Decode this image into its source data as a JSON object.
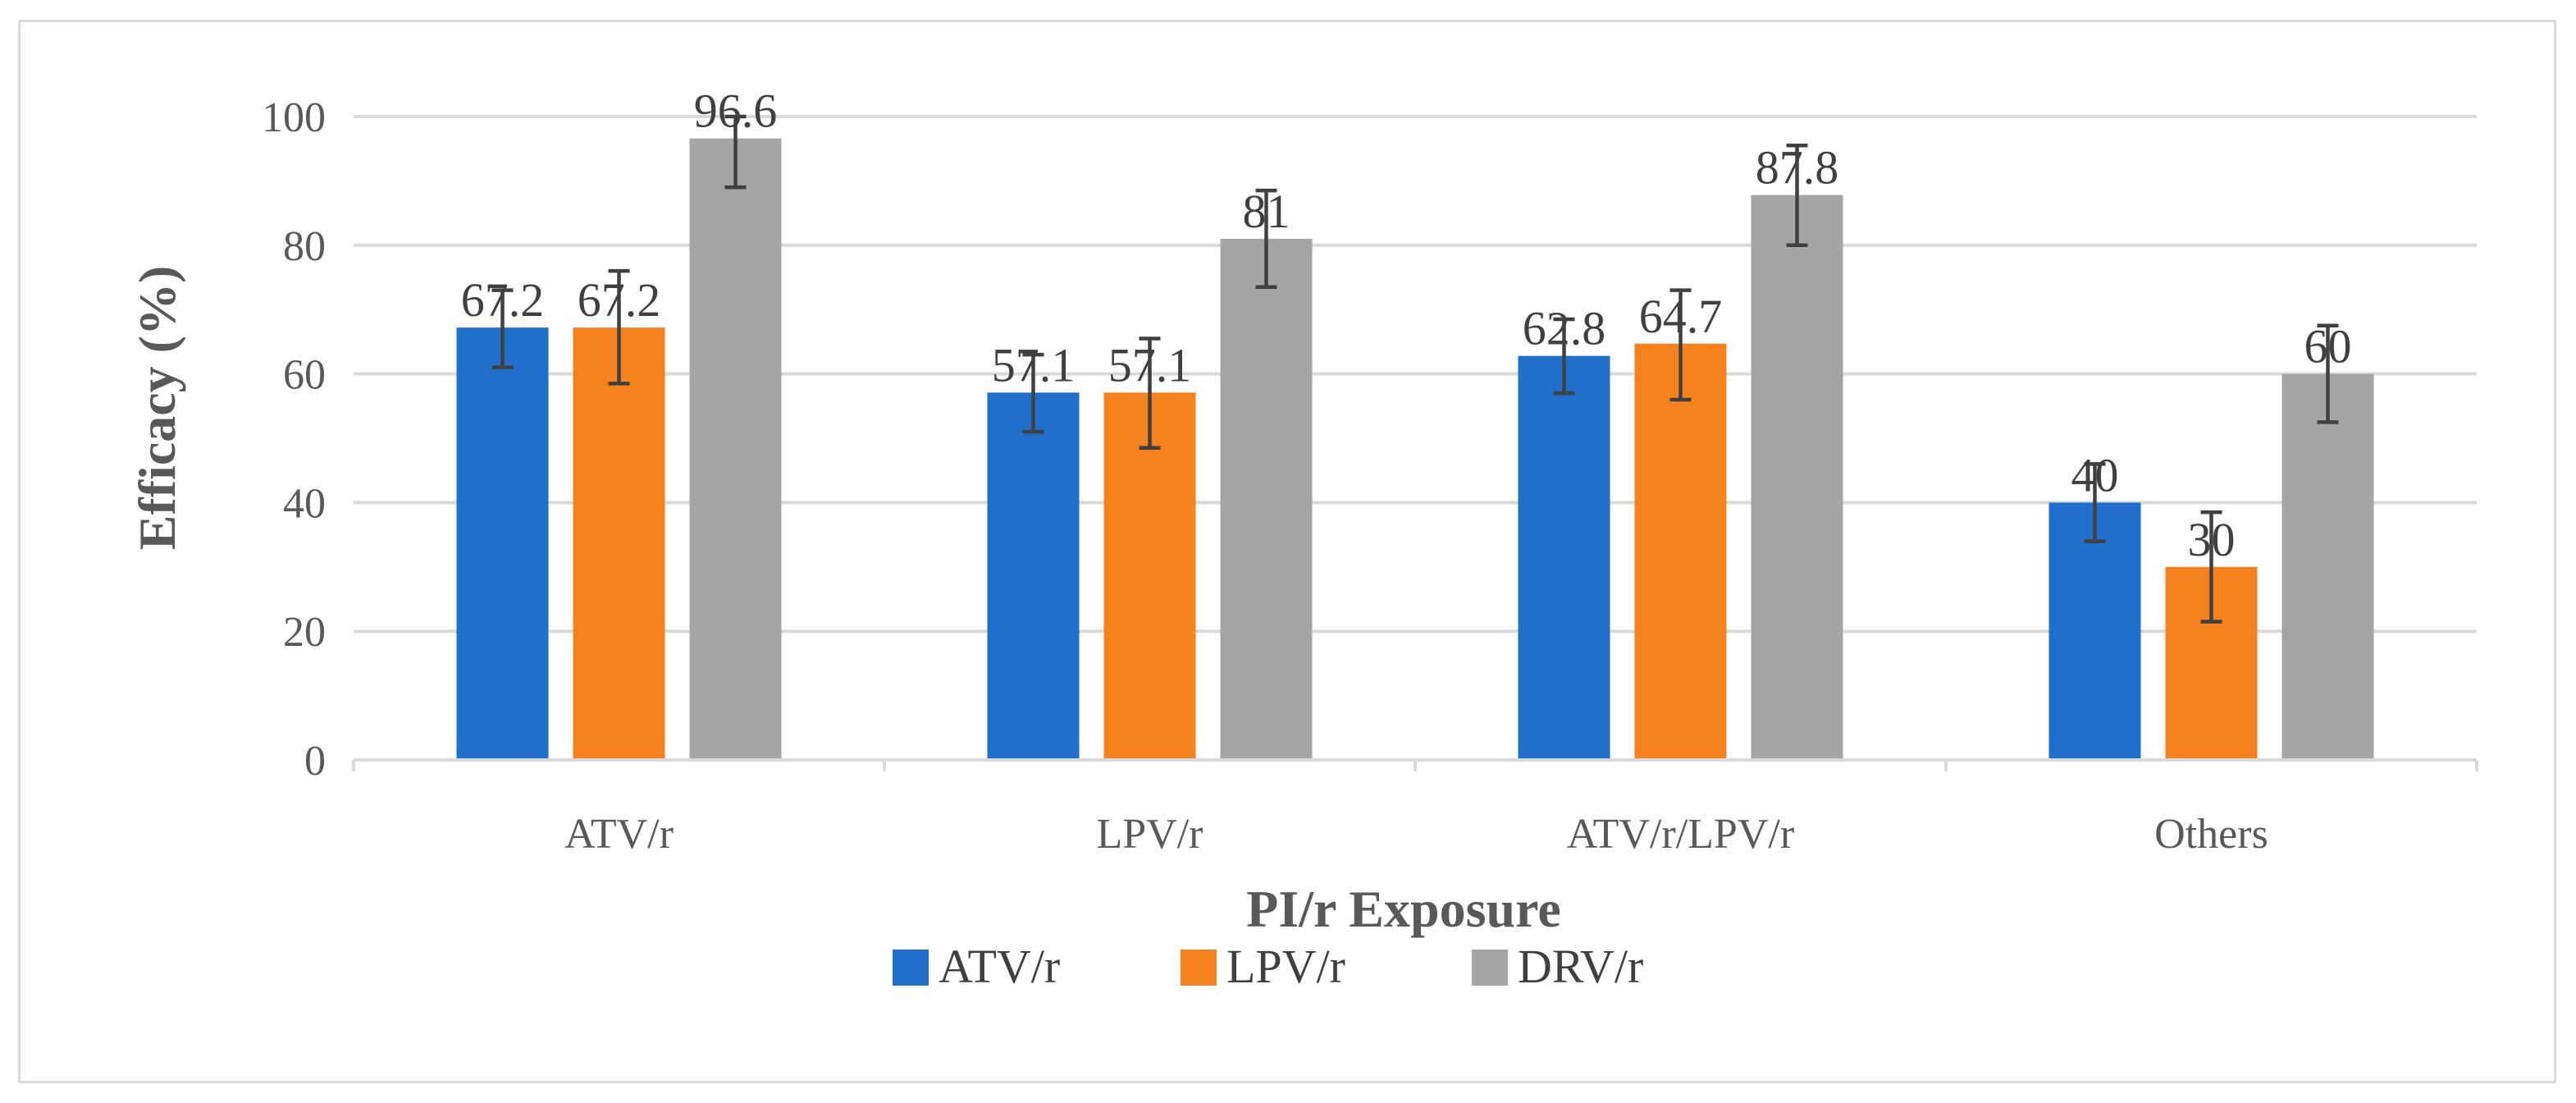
{
  "chart_data": {
    "type": "bar",
    "title": "",
    "xlabel": "PI/r Exposure",
    "ylabel": "Efficacy (%)",
    "ylim": [
      0,
      100
    ],
    "yticks": [
      0,
      20,
      40,
      60,
      80,
      100
    ],
    "grid": true,
    "legend_position": "bottom",
    "categories": [
      "ATV/r",
      "LPV/r",
      "ATV/r/LPV/r",
      "Others"
    ],
    "series": [
      {
        "name": "ATV/r",
        "color": "#1f6fcb",
        "values": [
          67.2,
          57.1,
          62.8,
          40
        ],
        "labels": [
          "67.2",
          "57.1",
          "62.8",
          "40"
        ],
        "error_low": [
          61,
          51,
          57,
          34
        ],
        "error_high": [
          73,
          63,
          68.5,
          46
        ]
      },
      {
        "name": "LPV/r",
        "color": "#f5821f",
        "values": [
          67.2,
          57.1,
          64.7,
          30
        ],
        "labels": [
          "67.2",
          "57.1",
          "64.7",
          "30"
        ],
        "error_low": [
          58.5,
          48.5,
          56,
          21.5
        ],
        "error_high": [
          76,
          65.5,
          73,
          38.5
        ]
      },
      {
        "name": "DRV/r",
        "color": "#a5a5a5",
        "values": [
          96.6,
          81,
          87.8,
          60
        ],
        "labels": [
          "96.6",
          "81",
          "87.8",
          "60"
        ],
        "error_low": [
          89,
          73.5,
          80,
          52.5
        ],
        "error_high": [
          100,
          88.5,
          95.5,
          67.5
        ]
      }
    ]
  }
}
